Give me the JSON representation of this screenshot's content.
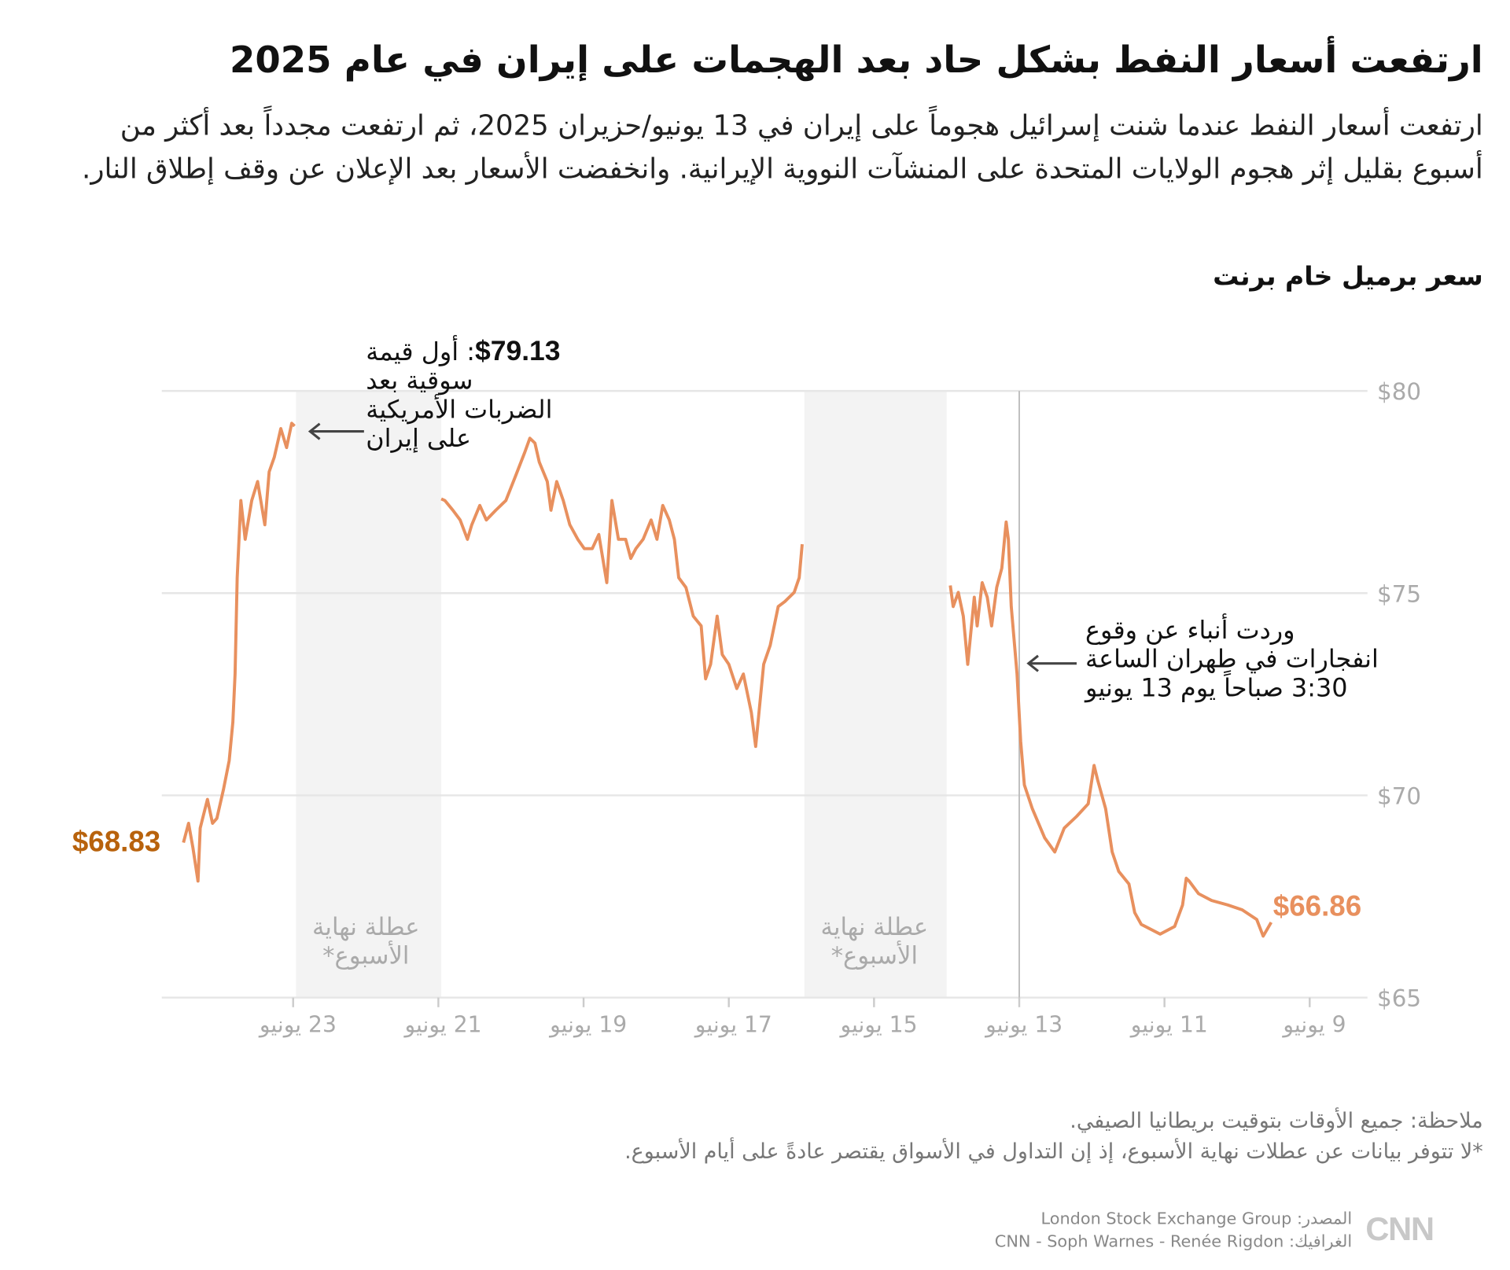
{
  "title": "ارتفعت أسعار النفط بشكل حاد بعد الهجمات على إيران في عام 2025",
  "subtitle": "ارتفعت أسعار النفط عندما شنت إسرائيل هجوماً على إيران في 13 يونيو/حزيران 2025، ثم ارتفعت مجدداً بعد أكثر من أسبوع بقليل إثر هجوم الولايات المتحدة على المنشآت النووية الإيرانية. وانخفضت الأسعار بعد الإعلان عن وقف إطلاق النار.",
  "chart_label": "سعر برميل خام برنت",
  "notes": {
    "line1": "ملاحظة: جميع الأوقات بتوقيت بريطانيا الصيفي.",
    "line2": "*لا تتوفر بيانات عن عطلات نهاية الأسبوع، إذ إن التداول في الأسواق يقتصر عادةً على أيام الأسبوع."
  },
  "source": {
    "line1": "المصدر: London Stock Exchange Group",
    "line2": "الغرافيك: CNN - Soph Warnes - Renée Rigdon"
  },
  "logo": "CNN بالعربية",
  "chart_data": {
    "type": "line",
    "title": "سعر برميل خام برنت",
    "x_axis": "reversed (right-to-left), day of June 2025",
    "xlim": [
      9,
      24.6
    ],
    "ylim": [
      65,
      80
    ],
    "y_ticks": [
      {
        "value": 80,
        "label": "$80"
      },
      {
        "value": 75,
        "label": "$75"
      },
      {
        "value": 70,
        "label": "$70"
      },
      {
        "value": 65,
        "label": "$65"
      }
    ],
    "x_ticks": [
      {
        "value": 9,
        "label": "9 يونيو"
      },
      {
        "value": 11,
        "label": "11 يونيو"
      },
      {
        "value": 13,
        "label": "13 يونيو"
      },
      {
        "value": 15,
        "label": "15 يونيو"
      },
      {
        "value": 17,
        "label": "17 يونيو"
      },
      {
        "value": 19,
        "label": "19 يونيو"
      },
      {
        "value": 21,
        "label": "21 يونيو"
      },
      {
        "value": 23,
        "label": "23 يونيو"
      }
    ],
    "grid": true,
    "line_color": "#e8905e",
    "weekend_bands": [
      {
        "from": 14,
        "to": 15.96,
        "label1": "عطلة نهاية",
        "label2": "الأسبوع*"
      },
      {
        "from": 20.96,
        "to": 22.96,
        "label1": "عطلة نهاية",
        "label2": "الأسبوع*"
      }
    ],
    "reference_line": 13,
    "series_segments": [
      [
        [
          9.53,
          66.86
        ],
        [
          9.64,
          66.52
        ],
        [
          9.73,
          66.93
        ],
        [
          9.93,
          67.17
        ],
        [
          10.13,
          67.29
        ],
        [
          10.35,
          67.4
        ],
        [
          10.53,
          67.57
        ],
        [
          10.66,
          67.88
        ],
        [
          10.7,
          67.95
        ],
        [
          10.75,
          67.29
        ],
        [
          10.86,
          66.76
        ],
        [
          11.06,
          66.57
        ],
        [
          11.32,
          66.81
        ],
        [
          11.41,
          67.1
        ],
        [
          11.49,
          67.81
        ],
        [
          11.63,
          68.12
        ],
        [
          11.72,
          68.6
        ],
        [
          11.81,
          69.67
        ],
        [
          11.92,
          70.38
        ],
        [
          11.97,
          70.74
        ],
        [
          12.05,
          69.79
        ],
        [
          12.21,
          69.48
        ],
        [
          12.38,
          69.19
        ],
        [
          12.51,
          68.6
        ],
        [
          12.65,
          68.95
        ],
        [
          12.82,
          69.67
        ],
        [
          12.93,
          70.26
        ],
        [
          12.98,
          71.33
        ],
        [
          13.03,
          73.0
        ],
        [
          13.11,
          74.67
        ],
        [
          13.15,
          76.33
        ],
        [
          13.18,
          76.76
        ],
        [
          13.24,
          75.62
        ],
        [
          13.31,
          75.14
        ],
        [
          13.38,
          74.19
        ],
        [
          13.44,
          74.9
        ],
        [
          13.51,
          75.26
        ],
        [
          13.58,
          74.19
        ],
        [
          13.62,
          74.9
        ],
        [
          13.71,
          73.24
        ],
        [
          13.77,
          74.43
        ],
        [
          13.84,
          75.02
        ],
        [
          13.91,
          74.67
        ],
        [
          13.95,
          75.19
        ]
      ],
      [
        [
          15.99,
          76.21
        ],
        [
          16.03,
          75.38
        ],
        [
          16.1,
          75.02
        ],
        [
          16.23,
          74.79
        ],
        [
          16.32,
          74.67
        ],
        [
          16.43,
          73.71
        ],
        [
          16.52,
          73.24
        ],
        [
          16.63,
          71.21
        ],
        [
          16.69,
          72.05
        ],
        [
          16.8,
          73.0
        ],
        [
          16.89,
          72.64
        ],
        [
          17.0,
          73.24
        ],
        [
          17.09,
          73.48
        ],
        [
          17.16,
          74.43
        ],
        [
          17.25,
          73.24
        ],
        [
          17.32,
          72.88
        ],
        [
          17.38,
          74.19
        ],
        [
          17.49,
          74.43
        ],
        [
          17.59,
          75.14
        ],
        [
          17.69,
          75.38
        ],
        [
          17.75,
          76.33
        ],
        [
          17.82,
          76.81
        ],
        [
          17.91,
          77.17
        ],
        [
          17.99,
          76.33
        ],
        [
          18.07,
          76.81
        ],
        [
          18.18,
          76.33
        ],
        [
          18.28,
          76.1
        ],
        [
          18.35,
          75.86
        ],
        [
          18.42,
          76.33
        ],
        [
          18.52,
          76.33
        ],
        [
          18.61,
          77.29
        ],
        [
          18.68,
          75.26
        ],
        [
          18.79,
          76.45
        ],
        [
          18.88,
          76.1
        ],
        [
          18.99,
          76.1
        ],
        [
          19.08,
          76.33
        ],
        [
          19.19,
          76.69
        ],
        [
          19.28,
          77.29
        ],
        [
          19.37,
          77.76
        ],
        [
          19.45,
          77.05
        ],
        [
          19.5,
          77.76
        ],
        [
          19.61,
          78.24
        ],
        [
          19.67,
          78.71
        ],
        [
          19.74,
          78.83
        ],
        [
          19.81,
          78.48
        ],
        [
          19.94,
          77.88
        ],
        [
          20.07,
          77.29
        ],
        [
          20.21,
          77.05
        ],
        [
          20.34,
          76.81
        ],
        [
          20.43,
          77.17
        ],
        [
          20.54,
          76.69
        ],
        [
          20.6,
          76.33
        ],
        [
          20.7,
          76.81
        ],
        [
          20.8,
          77.05
        ],
        [
          20.91,
          77.29
        ],
        [
          20.96,
          77.33
        ]
      ],
      [
        [
          22.98,
          79.13
        ],
        [
          23.02,
          79.2
        ],
        [
          23.09,
          78.6
        ],
        [
          23.17,
          79.07
        ],
        [
          23.26,
          78.36
        ],
        [
          23.33,
          78.0
        ],
        [
          23.39,
          76.69
        ],
        [
          23.49,
          77.76
        ],
        [
          23.57,
          77.29
        ],
        [
          23.66,
          76.33
        ],
        [
          23.72,
          77.29
        ],
        [
          23.77,
          75.38
        ],
        [
          23.8,
          73.0
        ],
        [
          23.83,
          71.81
        ],
        [
          23.88,
          70.86
        ],
        [
          23.96,
          70.14
        ],
        [
          24.05,
          69.43
        ],
        [
          24.11,
          69.31
        ],
        [
          24.18,
          69.9
        ],
        [
          24.28,
          69.19
        ],
        [
          24.31,
          67.88
        ],
        [
          24.38,
          68.71
        ],
        [
          24.44,
          69.31
        ],
        [
          24.51,
          68.83
        ]
      ]
    ],
    "start_label": {
      "text": "$66.86",
      "color": "#e8905e"
    },
    "end_label": {
      "text": "$68.83",
      "color": "#b8620c"
    },
    "annotations": {
      "peak_value": "$79.13",
      "peak_text1": ": أول قيمة",
      "peak_text2": "سوقية بعد",
      "peak_text3": "الضربات الأمريكية",
      "peak_text4": "على إيران",
      "tehran1": "وردت أنباء عن وقوع",
      "tehran2": "انفجارات في طهران الساعة",
      "tehran3": "3:30 صباحاً يوم 13 يونيو"
    }
  }
}
